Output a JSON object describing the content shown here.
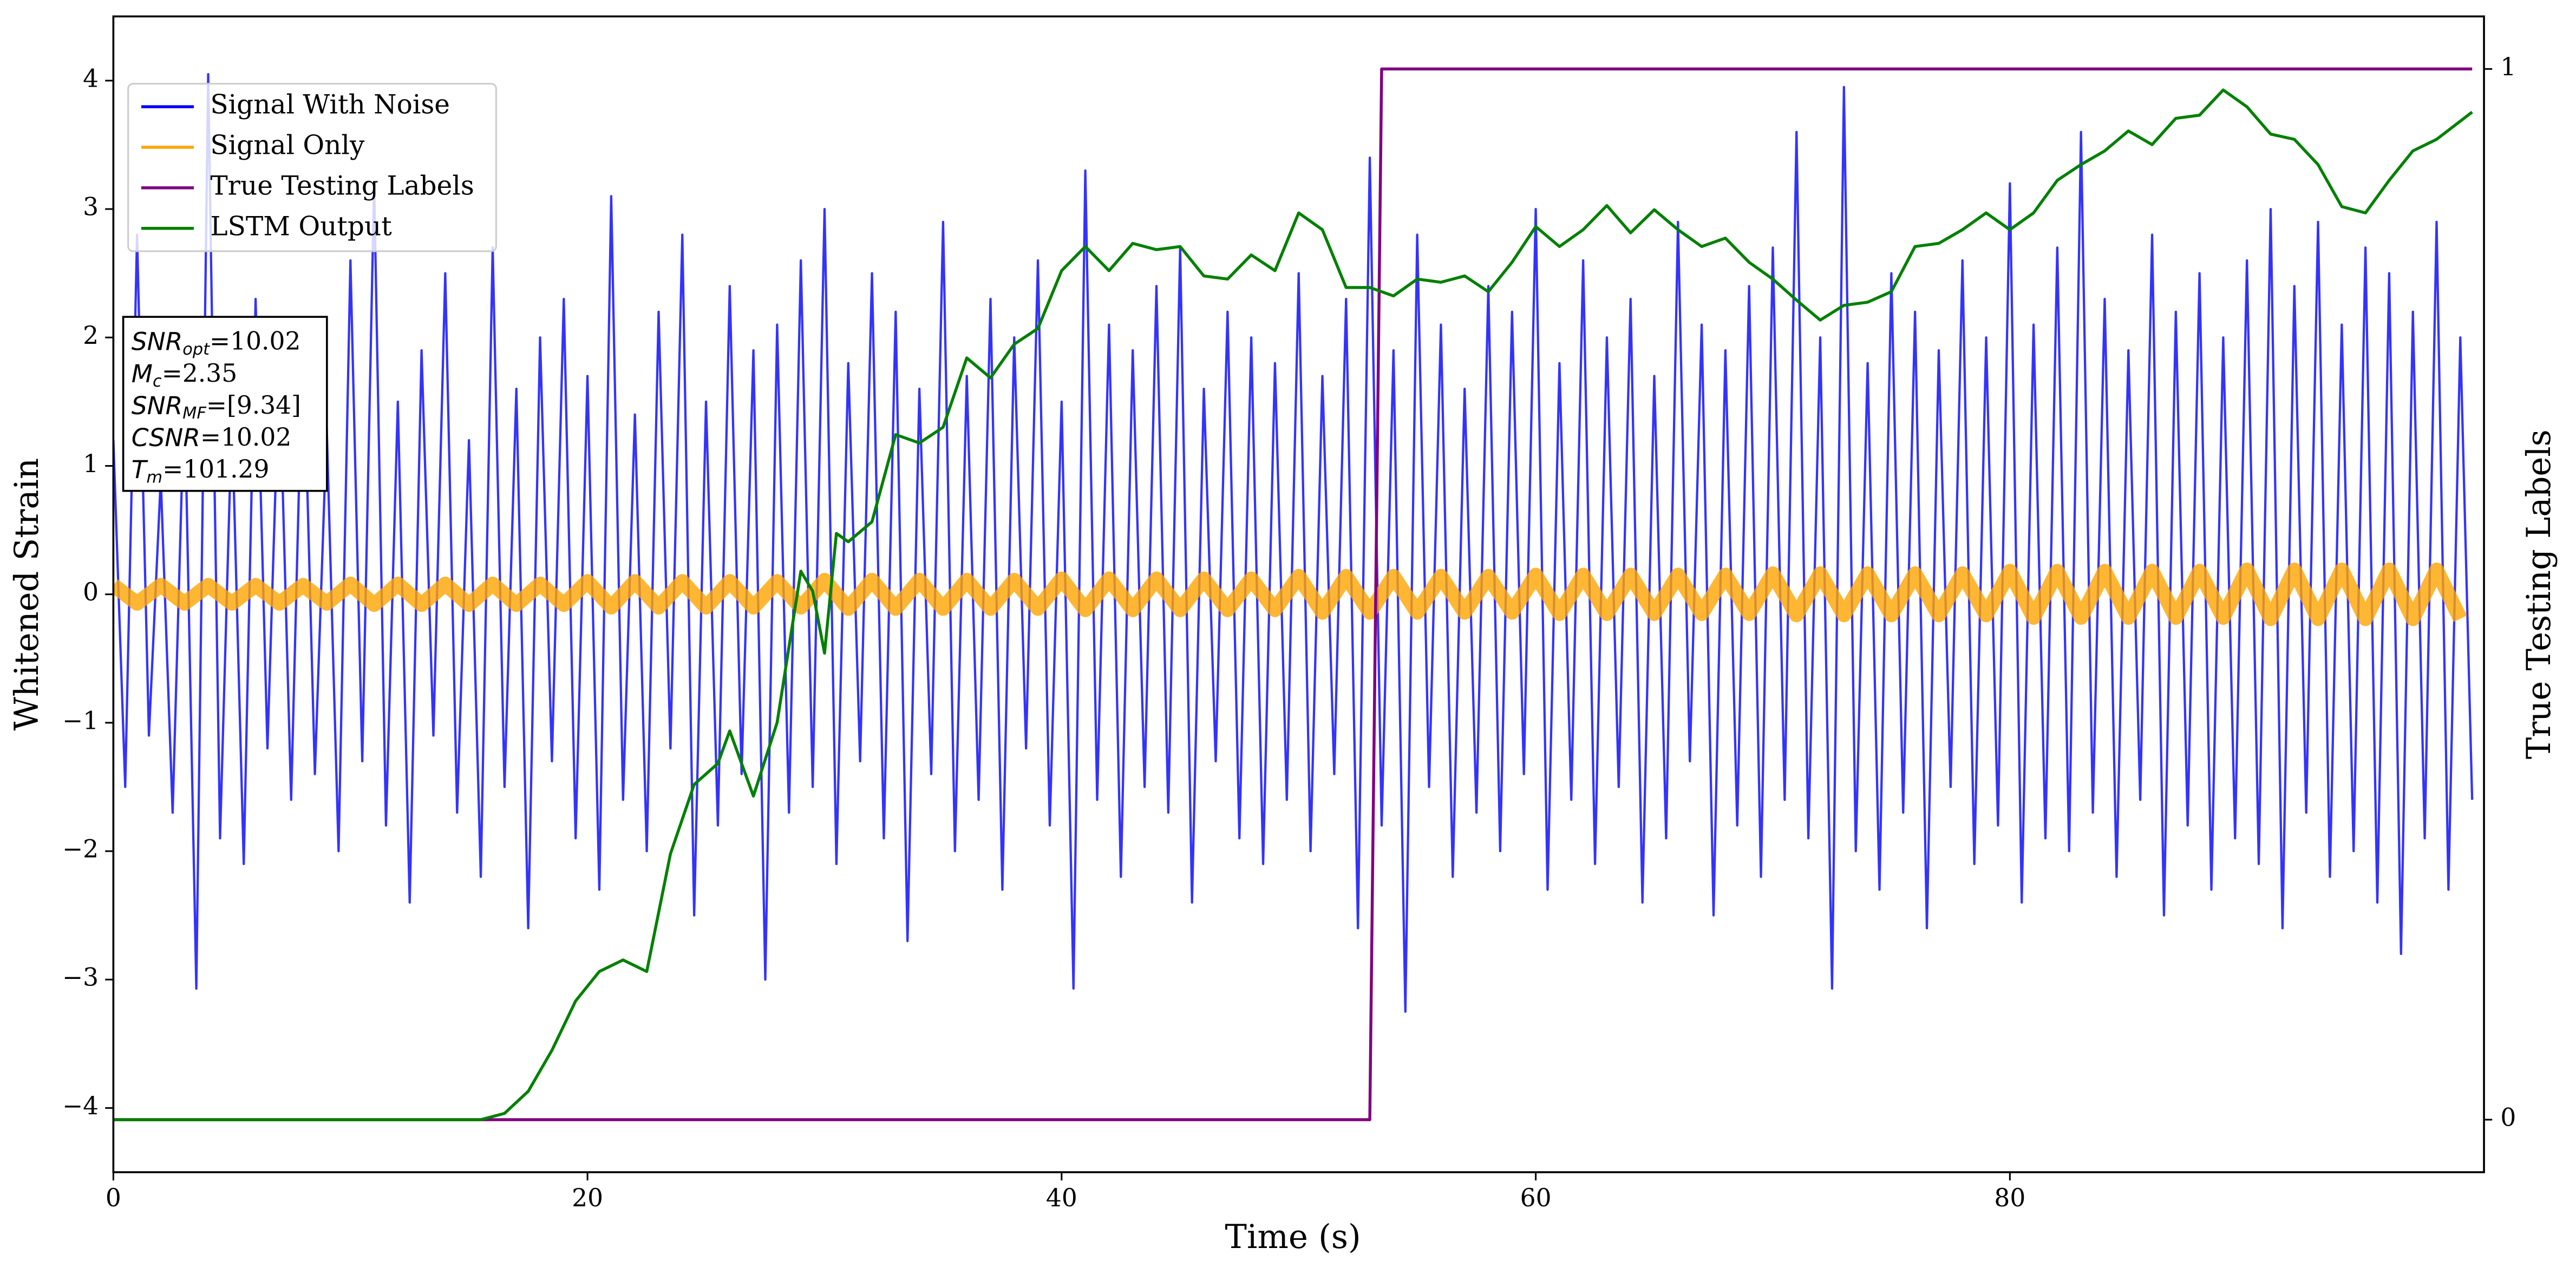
{
  "chart_data": {
    "type": "line",
    "xlabel": "Time (s)",
    "ylabel": "Whitened Strain",
    "y2label": "True Testing Labels",
    "xlim": [
      0,
      100
    ],
    "ylim": [
      -4.5,
      4.5
    ],
    "y2lim": [
      -0.05,
      1.05
    ],
    "xticks": [
      0,
      20,
      40,
      60,
      80
    ],
    "yticks": [
      {
        "value": -4,
        "label": "−4"
      },
      {
        "value": -3,
        "label": "−3"
      },
      {
        "value": -2,
        "label": "−2"
      },
      {
        "value": -1,
        "label": "−1"
      },
      0,
      1,
      2,
      3,
      4
    ],
    "y2ticks": [
      0,
      1
    ],
    "legend": "upper left",
    "annotations": [
      {
        "text": "SNR",
        "sub": "opt",
        "rest": "=10.02"
      },
      {
        "text": "M",
        "sub": "c",
        "rest": "=2.35"
      },
      {
        "text": "SNR",
        "sub": "MF",
        "rest": "=[9.34]"
      },
      {
        "text": "CSNR",
        "rest": "=10.02"
      },
      {
        "text": "T",
        "sub": "m",
        "rest": "=101.29"
      }
    ],
    "series": [
      {
        "name": "Signal With Noise",
        "color": "#0000ff",
        "x": [
          0,
          0.5,
          1,
          1.5,
          2,
          2.5,
          3,
          3.5,
          4,
          4.5,
          5,
          5.5,
          6,
          6.5,
          7,
          7.5,
          8,
          8.5,
          9,
          9.5,
          10,
          10.5,
          11,
          11.5,
          12,
          12.5,
          13,
          13.5,
          14,
          14.5,
          15,
          15.5,
          16,
          16.5,
          17,
          17.5,
          18,
          18.5,
          19,
          19.5,
          20,
          20.5,
          21,
          21.5,
          22,
          22.5,
          23,
          23.5,
          24,
          24.5,
          25,
          25.5,
          26,
          26.5,
          27,
          27.5,
          28,
          28.5,
          29,
          29.5,
          30,
          30.5,
          31,
          31.5,
          32,
          32.5,
          33,
          33.5,
          34,
          34.5,
          35,
          35.5,
          36,
          36.5,
          37,
          37.5,
          38,
          38.5,
          39,
          39.5,
          40,
          40.5,
          41,
          41.5,
          42,
          42.5,
          43,
          43.5,
          44,
          44.5,
          45,
          45.5,
          46,
          46.5,
          47,
          47.5,
          48,
          48.5,
          49,
          49.5,
          50,
          50.5,
          51,
          51.5,
          52,
          52.5,
          53,
          53.5,
          54,
          54.5,
          55,
          55.5,
          56,
          56.5,
          57,
          57.5,
          58,
          58.5,
          59,
          59.5,
          60,
          60.5,
          61,
          61.5,
          62,
          62.5,
          63,
          63.5,
          64,
          64.5,
          65,
          65.5,
          66,
          66.5,
          67,
          67.5,
          68,
          68.5,
          69,
          69.5,
          70,
          70.5,
          71,
          71.5,
          72,
          72.5,
          73,
          73.5,
          74,
          74.5,
          75,
          75.5,
          76,
          76.5,
          77,
          77.5,
          78,
          78.5,
          79,
          79.5,
          80,
          80.5,
          81,
          81.5,
          82,
          82.5,
          83,
          83.5,
          84,
          84.5,
          85,
          85.5,
          86,
          86.5,
          87,
          87.5,
          88,
          88.5,
          89,
          89.5,
          90,
          90.5,
          91,
          91.5,
          92,
          92.5,
          93,
          93.5,
          94,
          94.5,
          95,
          95.5,
          96,
          96.5,
          97,
          97.5,
          98,
          98.5,
          99,
          99.5
        ],
        "values": [
          1.2,
          -1.5,
          2.8,
          -1.1,
          0.9,
          -1.7,
          1.6,
          -3.07,
          4.05,
          -1.9,
          1.4,
          -2.1,
          2.3,
          -1.2,
          1.8,
          -1.6,
          2.1,
          -1.4,
          1.3,
          -2.0,
          2.6,
          -1.3,
          3.2,
          -1.8,
          1.5,
          -2.4,
          1.9,
          -1.1,
          2.5,
          -1.7,
          1.2,
          -2.2,
          2.7,
          -1.5,
          1.6,
          -2.6,
          2.0,
          -1.3,
          2.3,
          -1.9,
          1.7,
          -2.3,
          3.1,
          -1.6,
          1.4,
          -2.0,
          2.2,
          -1.2,
          2.8,
          -2.5,
          1.5,
          -1.8,
          2.4,
          -1.4,
          1.9,
          -3.0,
          2.1,
          -1.7,
          2.6,
          -1.5,
          3.0,
          -2.1,
          1.8,
          -1.3,
          2.5,
          -1.9,
          2.2,
          -2.7,
          1.6,
          -1.4,
          2.9,
          -2.0,
          1.7,
          -1.6,
          2.3,
          -2.3,
          2.0,
          -1.2,
          2.6,
          -1.8,
          1.5,
          -3.07,
          3.3,
          -1.6,
          2.1,
          -2.2,
          1.9,
          -1.5,
          2.4,
          -1.7,
          2.7,
          -2.4,
          1.6,
          -1.3,
          2.2,
          -1.9,
          2.0,
          -2.1,
          1.8,
          -1.6,
          2.5,
          -2.0,
          1.7,
          -1.4,
          2.3,
          -2.6,
          3.4,
          -1.8,
          1.9,
          -3.25,
          2.8,
          -1.5,
          2.1,
          -2.2,
          1.6,
          -1.7,
          2.4,
          -2.0,
          2.2,
          -1.4,
          3.0,
          -2.3,
          1.8,
          -1.6,
          2.6,
          -2.1,
          2.0,
          -1.5,
          2.3,
          -2.4,
          1.7,
          -1.9,
          2.9,
          -1.3,
          2.1,
          -2.5,
          1.9,
          -1.8,
          2.4,
          -2.2,
          2.7,
          -1.6,
          3.6,
          -1.9,
          2.0,
          -3.07,
          3.95,
          -2.0,
          1.8,
          -2.3,
          2.5,
          -1.7,
          2.2,
          -2.6,
          1.9,
          -1.5,
          2.6,
          -2.1,
          2.0,
          -1.8,
          3.2,
          -2.4,
          2.1,
          -1.9,
          2.7,
          -2.0,
          3.6,
          -1.7,
          2.3,
          -2.2,
          1.9,
          -1.6,
          2.8,
          -2.5,
          2.2,
          -1.8,
          2.5,
          -2.3,
          2.0,
          -1.9,
          2.6,
          -2.1,
          3.0,
          -2.6,
          2.4,
          -1.7,
          2.9,
          -2.2,
          2.1,
          -2.0,
          2.7,
          -2.4,
          2.5,
          -2.8,
          2.2,
          -1.9,
          2.9,
          -2.3,
          2.0,
          -1.6
        ]
      },
      {
        "name": "Signal Only",
        "color": "#ffa500",
        "x": [
          0,
          1,
          2,
          3,
          4,
          5,
          6,
          7,
          8,
          9,
          10,
          11,
          12,
          13,
          14,
          15,
          16,
          17,
          18,
          19,
          20,
          21,
          22,
          23,
          24,
          25,
          26,
          27,
          28,
          29,
          30,
          31,
          32,
          33,
          34,
          35,
          36,
          37,
          38,
          39,
          40,
          41,
          42,
          43,
          44,
          45,
          46,
          47,
          48,
          49,
          50,
          51,
          52,
          53,
          54,
          55,
          56,
          57,
          58,
          59,
          60,
          61,
          62,
          63,
          64,
          65,
          66,
          67,
          68,
          69,
          70,
          71,
          72,
          73,
          74,
          75,
          76,
          77,
          78,
          79,
          80,
          81,
          82,
          83,
          84,
          85,
          86,
          87,
          88,
          89,
          90,
          91,
          92,
          93,
          94,
          95,
          96,
          97,
          98,
          99
        ],
        "values": [
          0.07,
          -0.07,
          0.07,
          -0.07,
          0.07,
          -0.07,
          0.07,
          -0.07,
          0.07,
          -0.07,
          0.08,
          -0.08,
          0.08,
          -0.08,
          0.08,
          -0.08,
          0.08,
          -0.08,
          0.08,
          -0.08,
          0.1,
          -0.1,
          0.1,
          -0.1,
          0.1,
          -0.1,
          0.1,
          -0.1,
          0.1,
          -0.1,
          0.11,
          -0.11,
          0.11,
          -0.11,
          0.11,
          -0.11,
          0.11,
          -0.11,
          0.11,
          -0.11,
          0.12,
          -0.12,
          0.12,
          -0.12,
          0.12,
          -0.12,
          0.12,
          -0.12,
          0.12,
          -0.12,
          0.14,
          -0.14,
          0.14,
          -0.14,
          0.14,
          -0.14,
          0.14,
          -0.14,
          0.14,
          -0.14,
          0.15,
          -0.15,
          0.15,
          -0.15,
          0.15,
          -0.15,
          0.15,
          -0.15,
          0.15,
          -0.15,
          0.16,
          -0.16,
          0.16,
          -0.16,
          0.16,
          -0.16,
          0.16,
          -0.16,
          0.16,
          -0.16,
          0.18,
          -0.18,
          0.18,
          -0.18,
          0.18,
          -0.18,
          0.18,
          -0.18,
          0.18,
          -0.18,
          0.19,
          -0.19,
          0.19,
          -0.19,
          0.19,
          -0.19,
          0.19,
          -0.19,
          0.19,
          -0.19
        ]
      },
      {
        "name": "True Testing Labels",
        "color": "#800080",
        "axis": "y2",
        "x": [
          0,
          53,
          53.5,
          99.5
        ],
        "values": [
          0,
          0,
          1,
          1
        ]
      },
      {
        "name": "LSTM Output",
        "color": "#008000",
        "axis": "y2",
        "x": [
          0,
          15.5,
          16.5,
          17.5,
          18.5,
          19.5,
          20.5,
          21.5,
          22.5,
          23.5,
          24.5,
          25.5,
          26,
          27,
          28,
          29,
          29.5,
          30,
          30.5,
          31,
          32,
          33,
          34,
          35,
          36,
          37,
          38,
          39,
          40,
          41,
          42,
          43,
          44,
          45,
          46,
          47,
          48,
          49,
          50,
          51,
          52,
          53,
          54,
          55,
          56,
          57,
          58,
          59,
          60,
          61,
          62,
          63,
          64,
          65,
          66,
          67,
          68,
          69,
          70,
          71,
          72,
          73,
          74,
          75,
          76,
          77,
          78,
          79,
          80,
          81,
          82,
          83,
          84,
          85,
          86,
          87,
          88,
          89,
          90,
          91,
          92,
          93,
          94,
          95,
          96,
          97,
          98,
          99.5
        ],
        "values": [
          0,
          0,
          0.006,
          0.027,
          0.066,
          0.113,
          0.141,
          0.152,
          0.141,
          0.253,
          0.319,
          0.339,
          0.37,
          0.308,
          0.378,
          0.522,
          0.503,
          0.444,
          0.558,
          0.55,
          0.569,
          0.652,
          0.644,
          0.659,
          0.725,
          0.706,
          0.738,
          0.753,
          0.808,
          0.831,
          0.808,
          0.834,
          0.828,
          0.831,
          0.803,
          0.8,
          0.823,
          0.808,
          0.863,
          0.847,
          0.792,
          0.792,
          0.784,
          0.8,
          0.797,
          0.803,
          0.788,
          0.816,
          0.85,
          0.831,
          0.847,
          0.87,
          0.844,
          0.866,
          0.847,
          0.831,
          0.839,
          0.816,
          0.8,
          0.78,
          0.761,
          0.775,
          0.778,
          0.788,
          0.831,
          0.834,
          0.847,
          0.863,
          0.847,
          0.863,
          0.894,
          0.909,
          0.922,
          0.941,
          0.928,
          0.953,
          0.956,
          0.98,
          0.964,
          0.938,
          0.933,
          0.909,
          0.869,
          0.863,
          0.894,
          0.922,
          0.933,
          0.959
        ]
      }
    ]
  }
}
